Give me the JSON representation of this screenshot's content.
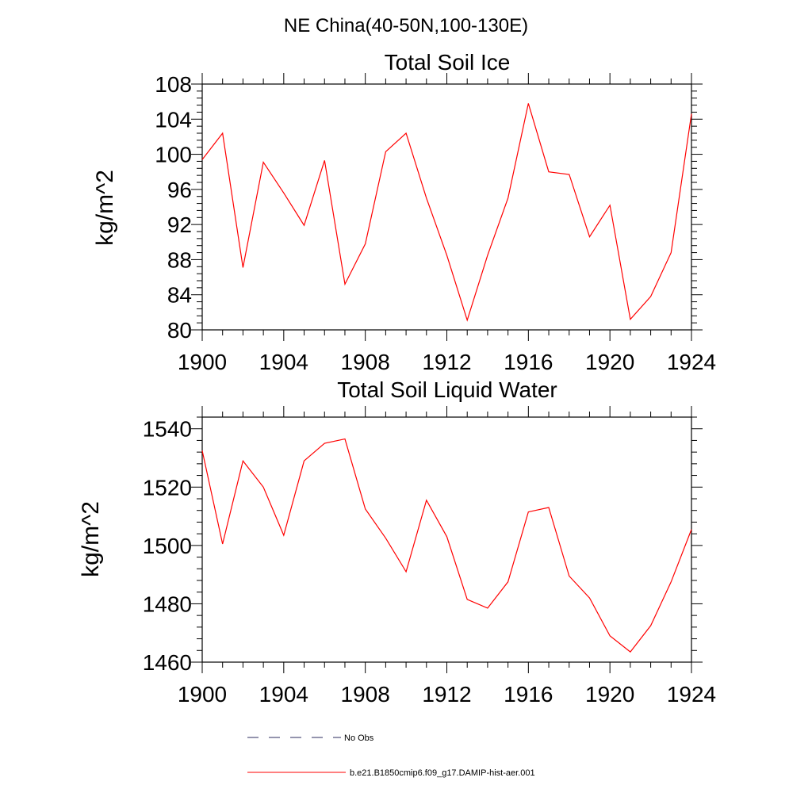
{
  "figure": {
    "title": "NE China(40-50N,100-130E)"
  },
  "chart_data": [
    {
      "type": "line",
      "title": "Total Soil Ice",
      "xlabel": "",
      "ylabel": "kg/m^2",
      "xlim": [
        1900,
        1924
      ],
      "ylim": [
        80,
        108
      ],
      "xticks": [
        1900,
        1904,
        1908,
        1912,
        1916,
        1920,
        1924
      ],
      "yticks": [
        80,
        84,
        88,
        92,
        96,
        100,
        104,
        108
      ],
      "xtick_labels": [
        "1900",
        "1904",
        "1908",
        "1912",
        "1916",
        "1920",
        "1924"
      ],
      "ytick_labels": [
        "80",
        "84",
        "88",
        "92",
        "96",
        "100",
        "104",
        "108"
      ],
      "x": [
        1900,
        1901,
        1902,
        1903,
        1904,
        1905,
        1906,
        1907,
        1908,
        1909,
        1910,
        1911,
        1912,
        1913,
        1914,
        1915,
        1916,
        1917,
        1918,
        1919,
        1920,
        1921,
        1922,
        1923,
        1924
      ],
      "series": [
        {
          "name": "b.e21.B1850cmip6.f09_g17.DAMIP-hist-aer.001",
          "color": "#ff0000",
          "values": [
            99.4,
            102.4,
            87.1,
            99.1,
            95.6,
            91.9,
            99.3,
            85.2,
            89.8,
            100.3,
            102.4,
            95.0,
            88.5,
            81.1,
            88.5,
            95.0,
            105.8,
            98.0,
            97.7,
            90.6,
            94.2,
            81.2,
            83.8,
            88.8,
            104.6
          ]
        }
      ]
    },
    {
      "type": "line",
      "title": "Total Soil Liquid Water",
      "xlabel": "",
      "ylabel": "kg/m^2",
      "xlim": [
        1900,
        1924
      ],
      "ylim": [
        1460,
        1544
      ],
      "xticks": [
        1900,
        1904,
        1908,
        1912,
        1916,
        1920,
        1924
      ],
      "yticks": [
        1460,
        1480,
        1500,
        1520,
        1540
      ],
      "xtick_labels": [
        "1900",
        "1904",
        "1908",
        "1912",
        "1916",
        "1920",
        "1924"
      ],
      "ytick_labels": [
        "1460",
        "1480",
        "1500",
        "1520",
        "1540"
      ],
      "x": [
        1900,
        1901,
        1902,
        1903,
        1904,
        1905,
        1906,
        1907,
        1908,
        1909,
        1910,
        1911,
        1912,
        1913,
        1914,
        1915,
        1916,
        1917,
        1918,
        1919,
        1920,
        1921,
        1922,
        1923,
        1924
      ],
      "series": [
        {
          "name": "b.e21.B1850cmip6.f09_g17.DAMIP-hist-aer.001",
          "color": "#ff0000",
          "values": [
            1532.5,
            1500.5,
            1529.0,
            1520.0,
            1503.5,
            1529.0,
            1535.0,
            1536.5,
            1512.5,
            1502.5,
            1491.0,
            1515.5,
            1503.0,
            1481.5,
            1478.5,
            1487.5,
            1511.5,
            1513.0,
            1489.5,
            1482.0,
            1469.0,
            1463.5,
            1472.5,
            1487.5,
            1505.5
          ]
        }
      ]
    }
  ],
  "legend": {
    "items": [
      {
        "label": "No Obs",
        "style": "dashed",
        "color": "#2b2b5e"
      },
      {
        "label": "b.e21.B1850cmip6.f09_g17.DAMIP-hist-aer.001",
        "style": "solid",
        "color": "#ff0000"
      }
    ]
  }
}
